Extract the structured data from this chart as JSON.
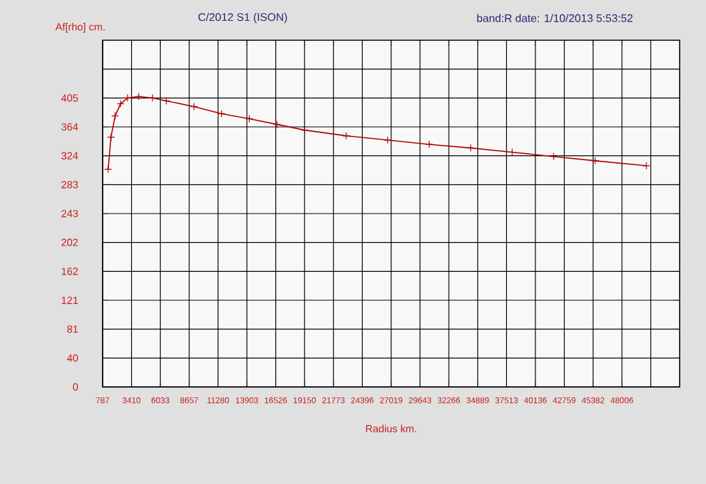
{
  "chart_data": {
    "type": "line",
    "title": "C/2012 S1 (ISON)",
    "subtitle": "band:R date:  1/10/2013  5:53:52",
    "xlabel": "Radius km.",
    "ylabel": "Af[rho] cm.",
    "x": [
      1290,
      1542,
      1920,
      2420,
      3050,
      4060,
      5320,
      6570,
      9090,
      11600,
      14120,
      16640,
      19150,
      22930,
      26700,
      30480,
      34250,
      38020,
      41800,
      45570,
      50230
    ],
    "series": [
      {
        "color": "#b00000",
        "values": [
          305,
          350,
          380,
          397,
          405,
          407,
          405,
          401,
          393,
          383,
          376,
          368,
          360,
          352,
          346,
          340,
          335,
          329,
          323,
          317,
          310
        ]
      }
    ],
    "xlim": [
      787,
      53253
    ],
    "ylim": [
      0,
      486
    ],
    "xticks": [
      787,
      3410,
      6033,
      8657,
      11280,
      13903,
      16526,
      19150,
      21773,
      24396,
      27019,
      29643,
      32266,
      34889,
      37513,
      40136,
      42759,
      45382,
      48006,
      {
        "value": 50629,
        "label": null
      }
    ],
    "yticks": [
      0,
      {
        "value": 40.5,
        "label": "40"
      },
      81,
      {
        "value": 121.5,
        "label": "121"
      },
      162,
      {
        "value": 202.5,
        "label": "202"
      },
      243,
      {
        "value": 283.5,
        "label": "283"
      },
      324,
      {
        "value": 364.5,
        "label": "364"
      },
      405,
      {
        "value": 445.5,
        "label": null
      }
    ],
    "grid": true,
    "marker": "cross",
    "line_style": "solid"
  }
}
